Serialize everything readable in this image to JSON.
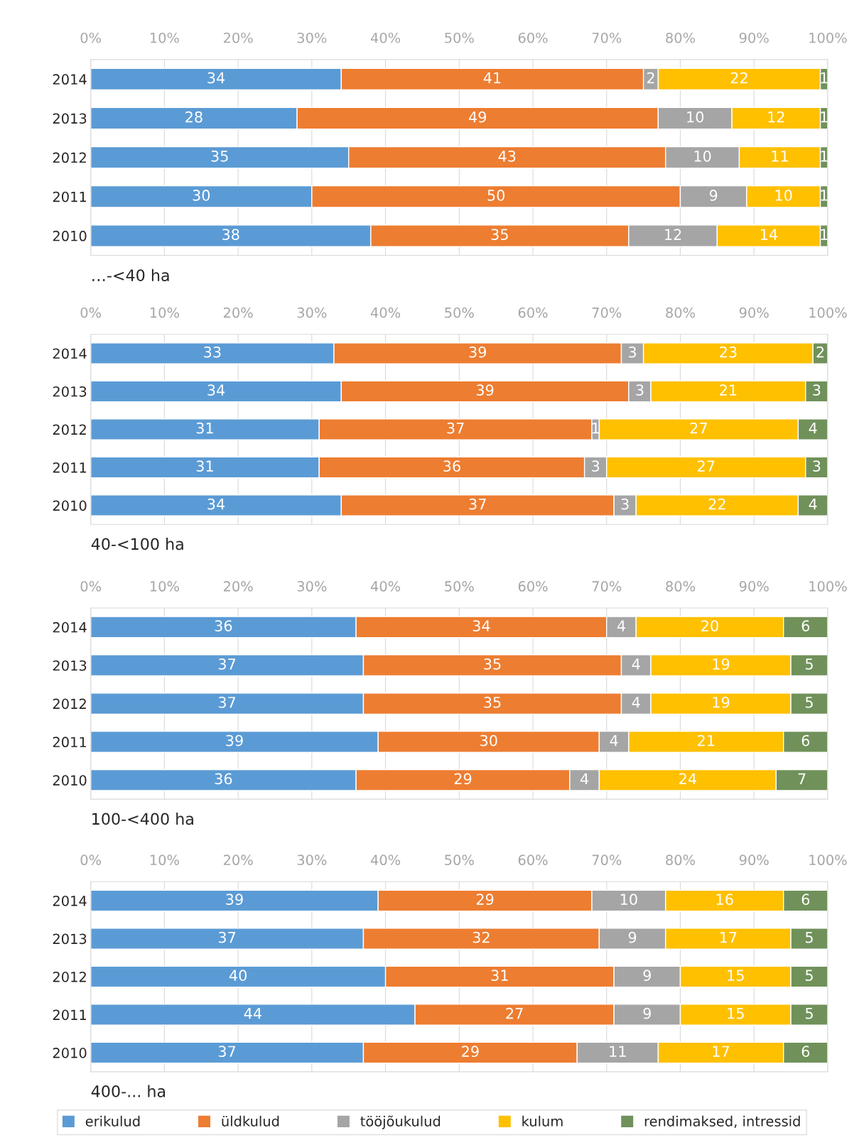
{
  "chart_data": [
    {
      "type": "bar",
      "orientation": "horizontal",
      "stacked": true,
      "title": "…-<40 ha",
      "categories": [
        "2014",
        "2013",
        "2012",
        "2011",
        "2010"
      ],
      "xlim": [
        0,
        100
      ],
      "xticks": [
        {
          "value": 0,
          "label": "0%"
        },
        {
          "value": 10,
          "label": "10%"
        },
        {
          "value": 20,
          "label": "20%"
        },
        {
          "value": 30,
          "label": "30%"
        },
        {
          "value": 40,
          "label": "40%"
        },
        {
          "value": 50,
          "label": "50%"
        },
        {
          "value": 60,
          "label": "60%"
        },
        {
          "value": 70,
          "label": "70%"
        },
        {
          "value": 80,
          "label": "80%"
        },
        {
          "value": 90,
          "label": "90%"
        },
        {
          "value": 100,
          "label": "100%"
        }
      ],
      "grid": "x",
      "data_labels": true,
      "legend": "bottom",
      "series": [
        {
          "name": "erikulud",
          "color": "#5b9bd5",
          "values": [
            34,
            28,
            35,
            30,
            38
          ]
        },
        {
          "name": "üldkulud",
          "color": "#ed7d31",
          "values": [
            41,
            49,
            43,
            50,
            35
          ]
        },
        {
          "name": "tööjõukulud",
          "color": "#a5a5a5",
          "values": [
            2,
            10,
            10,
            9,
            12
          ]
        },
        {
          "name": "kulum",
          "color": "#ffc000",
          "values": [
            22,
            12,
            11,
            10,
            14
          ]
        },
        {
          "name": "rendimaksed, intressid",
          "color": "#70915a",
          "values": [
            1,
            1,
            1,
            1,
            1
          ]
        }
      ]
    },
    {
      "type": "bar",
      "orientation": "horizontal",
      "stacked": true,
      "title": "40-<100 ha",
      "categories": [
        "2014",
        "2013",
        "2012",
        "2011",
        "2010"
      ],
      "xlim": [
        0,
        100
      ],
      "xticks": [
        {
          "value": 0,
          "label": "0%"
        },
        {
          "value": 10,
          "label": "10%"
        },
        {
          "value": 20,
          "label": "20%"
        },
        {
          "value": 30,
          "label": "30%"
        },
        {
          "value": 40,
          "label": "40%"
        },
        {
          "value": 50,
          "label": "50%"
        },
        {
          "value": 60,
          "label": "60%"
        },
        {
          "value": 70,
          "label": "70%"
        },
        {
          "value": 80,
          "label": "80%"
        },
        {
          "value": 90,
          "label": "90%"
        },
        {
          "value": 100,
          "label": "100%"
        }
      ],
      "grid": "x",
      "data_labels": true,
      "legend": false,
      "series": [
        {
          "color": "#5b9bd5",
          "values": [
            33,
            34,
            31,
            31,
            34
          ]
        },
        {
          "color": "#ed7d31",
          "values": [
            39,
            39,
            37,
            36,
            37
          ]
        },
        {
          "color": "#a5a5a5",
          "values": [
            3,
            3,
            1,
            3,
            3
          ]
        },
        {
          "color": "#ffc000",
          "values": [
            23,
            21,
            27,
            27,
            22
          ]
        },
        {
          "color": "#70915a",
          "values": [
            2,
            3,
            4,
            3,
            4
          ]
        }
      ]
    },
    {
      "type": "bar",
      "orientation": "horizontal",
      "stacked": true,
      "title": "100-<400 ha",
      "categories": [
        "2014",
        "2013",
        "2012",
        "2011",
        "2010"
      ],
      "xlim": [
        0,
        100
      ],
      "xticks": [
        {
          "value": 0,
          "label": "0%"
        },
        {
          "value": 10,
          "label": "10%"
        },
        {
          "value": 20,
          "label": "20%"
        },
        {
          "value": 30,
          "label": "30%"
        },
        {
          "value": 40,
          "label": "40%"
        },
        {
          "value": 50,
          "label": "50%"
        },
        {
          "value": 60,
          "label": "60%"
        },
        {
          "value": 70,
          "label": "70%"
        },
        {
          "value": 80,
          "label": "80%"
        },
        {
          "value": 90,
          "label": "90%"
        },
        {
          "value": 100,
          "label": "100%"
        }
      ],
      "grid": "x",
      "data_labels": true,
      "legend": false,
      "series": [
        {
          "color": "#5b9bd5",
          "values": [
            36,
            37,
            37,
            39,
            36
          ]
        },
        {
          "color": "#ed7d31",
          "values": [
            34,
            35,
            35,
            30,
            29
          ]
        },
        {
          "color": "#a5a5a5",
          "values": [
            4,
            4,
            4,
            4,
            4
          ]
        },
        {
          "color": "#ffc000",
          "values": [
            20,
            19,
            19,
            21,
            24
          ]
        },
        {
          "color": "#70915a",
          "values": [
            6,
            5,
            5,
            6,
            7
          ]
        }
      ]
    },
    {
      "type": "bar",
      "orientation": "horizontal",
      "stacked": true,
      "title": "400-... ha",
      "categories": [
        "2014",
        "2013",
        "2012",
        "2011",
        "2010"
      ],
      "xlim": [
        0,
        100
      ],
      "xticks": [
        {
          "value": 0,
          "label": "0%"
        },
        {
          "value": 10,
          "label": "10%"
        },
        {
          "value": 20,
          "label": "20%"
        },
        {
          "value": 30,
          "label": "30%"
        },
        {
          "value": 40,
          "label": "40%"
        },
        {
          "value": 50,
          "label": "50%"
        },
        {
          "value": 60,
          "label": "60%"
        },
        {
          "value": 70,
          "label": "70%"
        },
        {
          "value": 80,
          "label": "80%"
        },
        {
          "value": 90,
          "label": "90%"
        },
        {
          "value": 100,
          "label": "100%"
        }
      ],
      "grid": "x",
      "data_labels": true,
      "legend": false,
      "series": [
        {
          "color": "#5b9bd5",
          "values": [
            39,
            37,
            40,
            44,
            37
          ]
        },
        {
          "color": "#ed7d31",
          "values": [
            29,
            32,
            31,
            27,
            29
          ]
        },
        {
          "color": "#a5a5a5",
          "values": [
            10,
            9,
            9,
            9,
            11
          ]
        },
        {
          "color": "#ffc000",
          "values": [
            16,
            17,
            15,
            15,
            17
          ]
        },
        {
          "color": "#70915a",
          "values": [
            6,
            5,
            5,
            5,
            6
          ]
        }
      ]
    }
  ]
}
